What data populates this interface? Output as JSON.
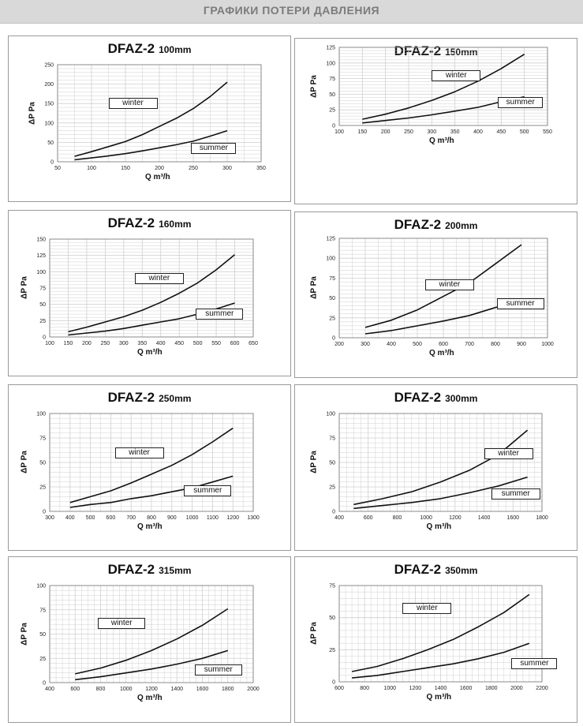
{
  "header": {
    "title": "ГРАФИКИ ПОТЕРИ ДАВЛЕНИЯ"
  },
  "colors": {
    "header_bg": "#d9d9d9",
    "header_text": "#7b7b7b",
    "grid": "#cfcfcf",
    "line": "#111111"
  },
  "chart_data": [
    {
      "type": "line",
      "title": "DFAZ-2",
      "size": "100mm",
      "xlabel": "Q m³/h",
      "ylabel": "ΔP Pa",
      "xlim": [
        50,
        350
      ],
      "ylim": [
        0,
        250
      ],
      "xticks": [
        "50",
        "100",
        "150",
        "200",
        "250",
        "300",
        "350"
      ],
      "yticks": [
        "0",
        "50",
        "100",
        "150",
        "200",
        "250"
      ],
      "grid": true,
      "series": [
        {
          "name": "winter",
          "x": [
            75,
            100,
            125,
            150,
            175,
            200,
            225,
            250,
            275,
            300
          ],
          "y": [
            14,
            26,
            39,
            52,
            70,
            91,
            112,
            137,
            168,
            205
          ]
        },
        {
          "name": "summer",
          "x": [
            75,
            100,
            125,
            150,
            175,
            200,
            225,
            250,
            275,
            300
          ],
          "y": [
            5,
            10,
            15,
            21,
            28,
            36,
            44,
            53,
            66,
            80
          ]
        }
      ]
    },
    {
      "type": "line",
      "title": "DFAZ-2",
      "size": "150mm",
      "xlabel": "Q m³/h",
      "ylabel": "ΔP Pa",
      "xlim": [
        100,
        550
      ],
      "ylim": [
        0,
        125
      ],
      "xticks": [
        "100",
        "150",
        "200",
        "250",
        "300",
        "350",
        "400",
        "450",
        "500",
        "550"
      ],
      "yticks": [
        "0",
        "25",
        "50",
        "75",
        "100",
        "125"
      ],
      "grid": true,
      "series": [
        {
          "name": "winter",
          "x": [
            150,
            200,
            250,
            300,
            350,
            400,
            450,
            500
          ],
          "y": [
            10,
            18,
            28,
            40,
            54,
            71,
            91,
            114
          ]
        },
        {
          "name": "summer",
          "x": [
            150,
            200,
            250,
            300,
            350,
            400,
            450,
            500
          ],
          "y": [
            4,
            8,
            12,
            17,
            23,
            29,
            38,
            46
          ]
        }
      ]
    },
    {
      "type": "line",
      "title": "DFAZ-2",
      "size": "160mm",
      "xlabel": "Q m³/h",
      "ylabel": "ΔP Pa",
      "xlim": [
        100,
        650
      ],
      "ylim": [
        0,
        150
      ],
      "xticks": [
        "100",
        "150",
        "200",
        "250",
        "300",
        "350",
        "400",
        "450",
        "500",
        "550",
        "600",
        "650"
      ],
      "yticks": [
        "0",
        "25",
        "50",
        "75",
        "100",
        "125",
        "150"
      ],
      "grid": true,
      "series": [
        {
          "name": "winter",
          "x": [
            150,
            200,
            250,
            300,
            350,
            400,
            450,
            500,
            550,
            600
          ],
          "y": [
            8,
            15,
            23,
            31,
            41,
            53,
            67,
            83,
            103,
            126
          ]
        },
        {
          "name": "summer",
          "x": [
            150,
            200,
            250,
            300,
            350,
            400,
            450,
            500,
            550,
            600
          ],
          "y": [
            3,
            6,
            9,
            13,
            18,
            23,
            28,
            35,
            43,
            52
          ]
        }
      ]
    },
    {
      "type": "line",
      "title": "DFAZ-2",
      "size": "200mm",
      "xlabel": "Q m³/h",
      "ylabel": "ΔP Pa",
      "xlim": [
        200,
        1000
      ],
      "ylim": [
        0,
        125
      ],
      "xticks": [
        "200",
        "300",
        "400",
        "500",
        "600",
        "700",
        "800",
        "900",
        "1000"
      ],
      "yticks": [
        "0",
        "25",
        "50",
        "75",
        "100",
        "125"
      ],
      "grid": true,
      "series": [
        {
          "name": "winter",
          "x": [
            300,
            400,
            500,
            600,
            700,
            800,
            900
          ],
          "y": [
            13,
            22,
            35,
            52,
            69,
            93,
            117
          ]
        },
        {
          "name": "summer",
          "x": [
            300,
            400,
            500,
            600,
            700,
            800,
            900
          ],
          "y": [
            5,
            9,
            15,
            21,
            28,
            38,
            49
          ]
        }
      ]
    },
    {
      "type": "line",
      "title": "DFAZ-2",
      "size": "250mm",
      "xlabel": "Q m³/h",
      "ylabel": "ΔP Pa",
      "xlim": [
        300,
        1300
      ],
      "ylim": [
        0,
        100
      ],
      "xticks": [
        "300",
        "400",
        "500",
        "600",
        "700",
        "800",
        "900",
        "1000",
        "1100",
        "1200",
        "1300"
      ],
      "yticks": [
        "0",
        "25",
        "50",
        "75",
        "100"
      ],
      "grid": true,
      "series": [
        {
          "name": "winter",
          "x": [
            400,
            500,
            600,
            700,
            800,
            900,
            1000,
            1100,
            1200
          ],
          "y": [
            9,
            15,
            21,
            29,
            38,
            47,
            58,
            71,
            85
          ]
        },
        {
          "name": "summer",
          "x": [
            400,
            500,
            600,
            700,
            800,
            900,
            1000,
            1100,
            1200
          ],
          "y": [
            4,
            7,
            9,
            13,
            16,
            20,
            24,
            30,
            36
          ]
        }
      ]
    },
    {
      "type": "line",
      "title": "DFAZ-2",
      "size": "300mm",
      "xlabel": "Q m³/h",
      "ylabel": "ΔP Pa",
      "xlim": [
        400,
        1800
      ],
      "ylim": [
        0,
        100
      ],
      "xticks": [
        "400",
        "600",
        "800",
        "1000",
        "1200",
        "1400",
        "1600",
        "1800"
      ],
      "yticks": [
        "0",
        "25",
        "50",
        "75",
        "100"
      ],
      "grid": true,
      "series": [
        {
          "name": "winter",
          "x": [
            500,
            700,
            900,
            1100,
            1300,
            1500,
            1700
          ],
          "y": [
            7,
            13,
            20,
            30,
            42,
            58,
            83
          ]
        },
        {
          "name": "summer",
          "x": [
            500,
            700,
            900,
            1100,
            1300,
            1500,
            1700
          ],
          "y": [
            3,
            6,
            9,
            13,
            19,
            26,
            35
          ]
        }
      ]
    },
    {
      "type": "line",
      "title": "DFAZ-2",
      "size": "315mm",
      "xlabel": "Q m³/h",
      "ylabel": "ΔP Pa",
      "xlim": [
        400,
        2000
      ],
      "ylim": [
        0,
        100
      ],
      "xticks": [
        "400",
        "600",
        "800",
        "1000",
        "1200",
        "1400",
        "1600",
        "1800",
        "2000"
      ],
      "yticks": [
        "0",
        "25",
        "50",
        "75",
        "100"
      ],
      "grid": true,
      "series": [
        {
          "name": "winter",
          "x": [
            600,
            800,
            1000,
            1200,
            1400,
            1600,
            1800
          ],
          "y": [
            9,
            15,
            23,
            33,
            45,
            59,
            76
          ]
        },
        {
          "name": "summer",
          "x": [
            600,
            800,
            1000,
            1200,
            1400,
            1600,
            1800
          ],
          "y": [
            3,
            6,
            10,
            14,
            19,
            25,
            33
          ]
        }
      ]
    },
    {
      "type": "line",
      "title": "DFAZ-2",
      "size": "350mm",
      "xlabel": "Q m³/h",
      "ylabel": "ΔP Pa",
      "xlim": [
        600,
        2200
      ],
      "ylim": [
        0,
        75
      ],
      "xticks": [
        "600",
        "800",
        "1000",
        "1200",
        "1400",
        "1600",
        "1800",
        "2000",
        "2200"
      ],
      "yticks": [
        "0",
        "25",
        "50",
        "75"
      ],
      "grid": true,
      "series": [
        {
          "name": "winter",
          "x": [
            700,
            900,
            1100,
            1300,
            1500,
            1700,
            1900,
            2100
          ],
          "y": [
            8,
            12,
            18,
            25,
            33,
            43,
            54,
            68
          ]
        },
        {
          "name": "summer",
          "x": [
            700,
            900,
            1100,
            1300,
            1500,
            1700,
            1900,
            2100
          ],
          "y": [
            3,
            5,
            8,
            11,
            14,
            18,
            23,
            30
          ]
        }
      ]
    }
  ]
}
